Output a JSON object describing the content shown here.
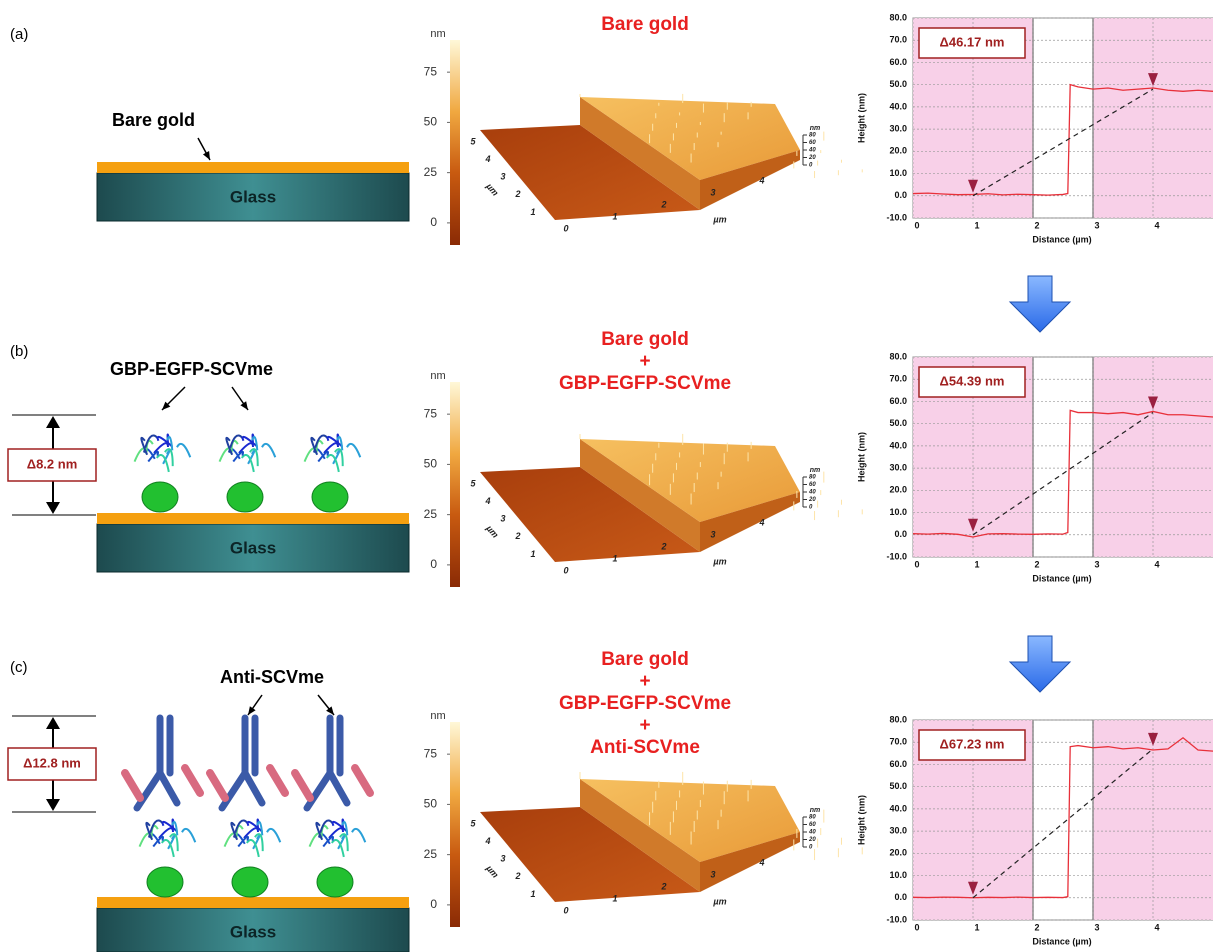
{
  "panels": [
    {
      "label": "(a)",
      "schematic": {
        "label": "Bare gold",
        "substrate": "Glass"
      },
      "afm": {
        "title": [
          "Bare gold"
        ],
        "colorbar_unit": "nm",
        "colorbar_lim": [
          -11,
          91
        ],
        "colorbar_ticks": [
          0,
          25,
          50,
          75
        ],
        "depth_ticks": [
          1,
          2,
          3,
          4,
          5
        ],
        "width_ticks": [
          0,
          1,
          2,
          3,
          4
        ],
        "axis_unit": "µm",
        "z_unit": "nm",
        "z_ticks": [
          0,
          20,
          40,
          60,
          80
        ]
      }
    },
    {
      "label": "(b)",
      "schematic": {
        "label": "GBP-EGFP-SCVme",
        "substrate": "Glass",
        "delta": "Δ8.2 nm"
      },
      "afm": {
        "title": [
          "Bare gold",
          "+",
          "GBP-EGFP-SCVme"
        ],
        "colorbar_unit": "nm",
        "colorbar_lim": [
          -11,
          91
        ],
        "colorbar_ticks": [
          0,
          25,
          50,
          75
        ],
        "depth_ticks": [
          1,
          2,
          3,
          4,
          5
        ],
        "width_ticks": [
          0,
          1,
          2,
          3,
          4
        ],
        "axis_unit": "µm",
        "z_unit": "nm",
        "z_ticks": [
          0,
          20,
          40,
          60,
          80
        ]
      }
    },
    {
      "label": "(c)",
      "schematic": {
        "label": "Anti-SCVme",
        "substrate": "Glass",
        "delta": "Δ12.8 nm"
      },
      "afm": {
        "title": [
          "Bare gold",
          "+",
          "GBP-EGFP-SCVme",
          "+",
          "Anti-SCVme"
        ],
        "colorbar_unit": "nm",
        "colorbar_lim": [
          -11,
          91
        ],
        "colorbar_ticks": [
          0,
          25,
          50,
          75
        ],
        "depth_ticks": [
          1,
          2,
          3,
          4,
          5
        ],
        "width_ticks": [
          0,
          1,
          2,
          3,
          4
        ],
        "axis_unit": "µm",
        "z_unit": "nm",
        "z_ticks": [
          0,
          20,
          40,
          60,
          80
        ]
      }
    }
  ],
  "chart_data": [
    {
      "type": "line",
      "annotation": "Δ46.17 nm",
      "x_label": "Distance (µm)",
      "y_label": "Height (nm)",
      "color": "#e8303a",
      "x": [
        0,
        0.25,
        0.5,
        0.75,
        1,
        1.25,
        1.5,
        1.75,
        2,
        2.25,
        2.5,
        2.58,
        2.62,
        2.75,
        3,
        3.25,
        3.5,
        3.75,
        4,
        4.25,
        4.5,
        4.75,
        5
      ],
      "values": [
        1,
        1.2,
        0.8,
        0.5,
        0.6,
        0.9,
        0.4,
        0.7,
        0.5,
        0.3,
        0.6,
        1,
        50,
        49,
        48,
        48.5,
        47.5,
        48,
        48.5,
        47.5,
        47,
        47.5,
        47
      ],
      "cursors": {
        "x": [
          1,
          4
        ],
        "y": [
          0,
          48
        ]
      },
      "highlights": [
        [
          0,
          2
        ],
        [
          3,
          5
        ]
      ],
      "xlim": [
        0,
        5
      ],
      "ylim": [
        -10,
        80
      ],
      "xticks": [
        0,
        1,
        2,
        3,
        4
      ],
      "yticks": [
        {
          "value": -10,
          "label": "-10.0"
        },
        {
          "value": 0,
          "label": "0.0"
        },
        {
          "value": 10,
          "label": "10.0"
        },
        {
          "value": 20,
          "label": "20.0"
        },
        {
          "value": 30,
          "label": "30.0"
        },
        {
          "value": 40,
          "label": "40.0"
        },
        {
          "value": 50,
          "label": "50.0"
        },
        {
          "value": 60,
          "label": "60.0"
        },
        {
          "value": 70,
          "label": "70.0"
        },
        {
          "value": 80,
          "label": "80.0"
        }
      ],
      "grid": true
    },
    {
      "type": "line",
      "annotation": "Δ54.39 nm",
      "x_label": "Distance (µm)",
      "y_label": "Height (nm)",
      "color": "#e8303a",
      "x": [
        0,
        0.25,
        0.5,
        0.75,
        1,
        1.25,
        1.5,
        1.75,
        2,
        2.25,
        2.5,
        2.58,
        2.62,
        2.75,
        3,
        3.25,
        3.5,
        3.75,
        4,
        4.25,
        4.5,
        4.75,
        5
      ],
      "values": [
        0.5,
        0.3,
        0.6,
        0.2,
        -1,
        0.4,
        0.5,
        0.3,
        0.2,
        0.4,
        0.3,
        1,
        56,
        55,
        55,
        54.5,
        55,
        54,
        55.5,
        54,
        54,
        53.5,
        53
      ],
      "cursors": {
        "x": [
          1,
          4
        ],
        "y": [
          0,
          55
        ]
      },
      "highlights": [
        [
          0,
          2
        ],
        [
          3,
          5
        ]
      ],
      "xlim": [
        0,
        5
      ],
      "ylim": [
        -10,
        80
      ],
      "xticks": [
        0,
        1,
        2,
        3,
        4
      ],
      "yticks": [
        {
          "value": -10,
          "label": "-10.0"
        },
        {
          "value": 0,
          "label": "0.0"
        },
        {
          "value": 10,
          "label": "10.0"
        },
        {
          "value": 20,
          "label": "20.0"
        },
        {
          "value": 30,
          "label": "30.0"
        },
        {
          "value": 40,
          "label": "40.0"
        },
        {
          "value": 50,
          "label": "50.0"
        },
        {
          "value": 60,
          "label": "60.0"
        },
        {
          "value": 70,
          "label": "70.0"
        },
        {
          "value": 80,
          "label": "80.0"
        }
      ],
      "grid": true
    },
    {
      "type": "line",
      "annotation": "Δ67.23 nm",
      "x_label": "Distance (µm)",
      "y_label": "Height (nm)",
      "color": "#e8303a",
      "x": [
        0,
        0.25,
        0.5,
        0.75,
        1,
        1.25,
        1.5,
        1.75,
        2,
        2.25,
        2.5,
        2.58,
        2.62,
        2.75,
        3,
        3.25,
        3.5,
        3.75,
        4,
        4.25,
        4.5,
        4.75,
        5
      ],
      "values": [
        0.2,
        0.1,
        0.3,
        0.2,
        0,
        0.2,
        0.1,
        0.3,
        0.1,
        0.2,
        0.1,
        0.5,
        68,
        68.5,
        67.5,
        68,
        67,
        67.5,
        66.5,
        67,
        72,
        66.5,
        66
      ],
      "cursors": {
        "x": [
          1,
          4
        ],
        "y": [
          0,
          67
        ]
      },
      "highlights": [
        [
          0,
          2
        ],
        [
          3,
          5
        ]
      ],
      "xlim": [
        0,
        5
      ],
      "ylim": [
        -10,
        80
      ],
      "xticks": [
        0,
        1,
        2,
        3,
        4
      ],
      "yticks": [
        {
          "value": -10,
          "label": "-10.0"
        },
        {
          "value": 0,
          "label": "0.0"
        },
        {
          "value": 10,
          "label": "10.0"
        },
        {
          "value": 20,
          "label": "20.0"
        },
        {
          "value": 30,
          "label": "30.0"
        },
        {
          "value": 40,
          "label": "40.0"
        },
        {
          "value": 50,
          "label": "50.0"
        },
        {
          "value": 60,
          "label": "60.0"
        },
        {
          "value": 70,
          "label": "70.0"
        },
        {
          "value": 80,
          "label": "80.0"
        }
      ],
      "grid": true
    }
  ]
}
